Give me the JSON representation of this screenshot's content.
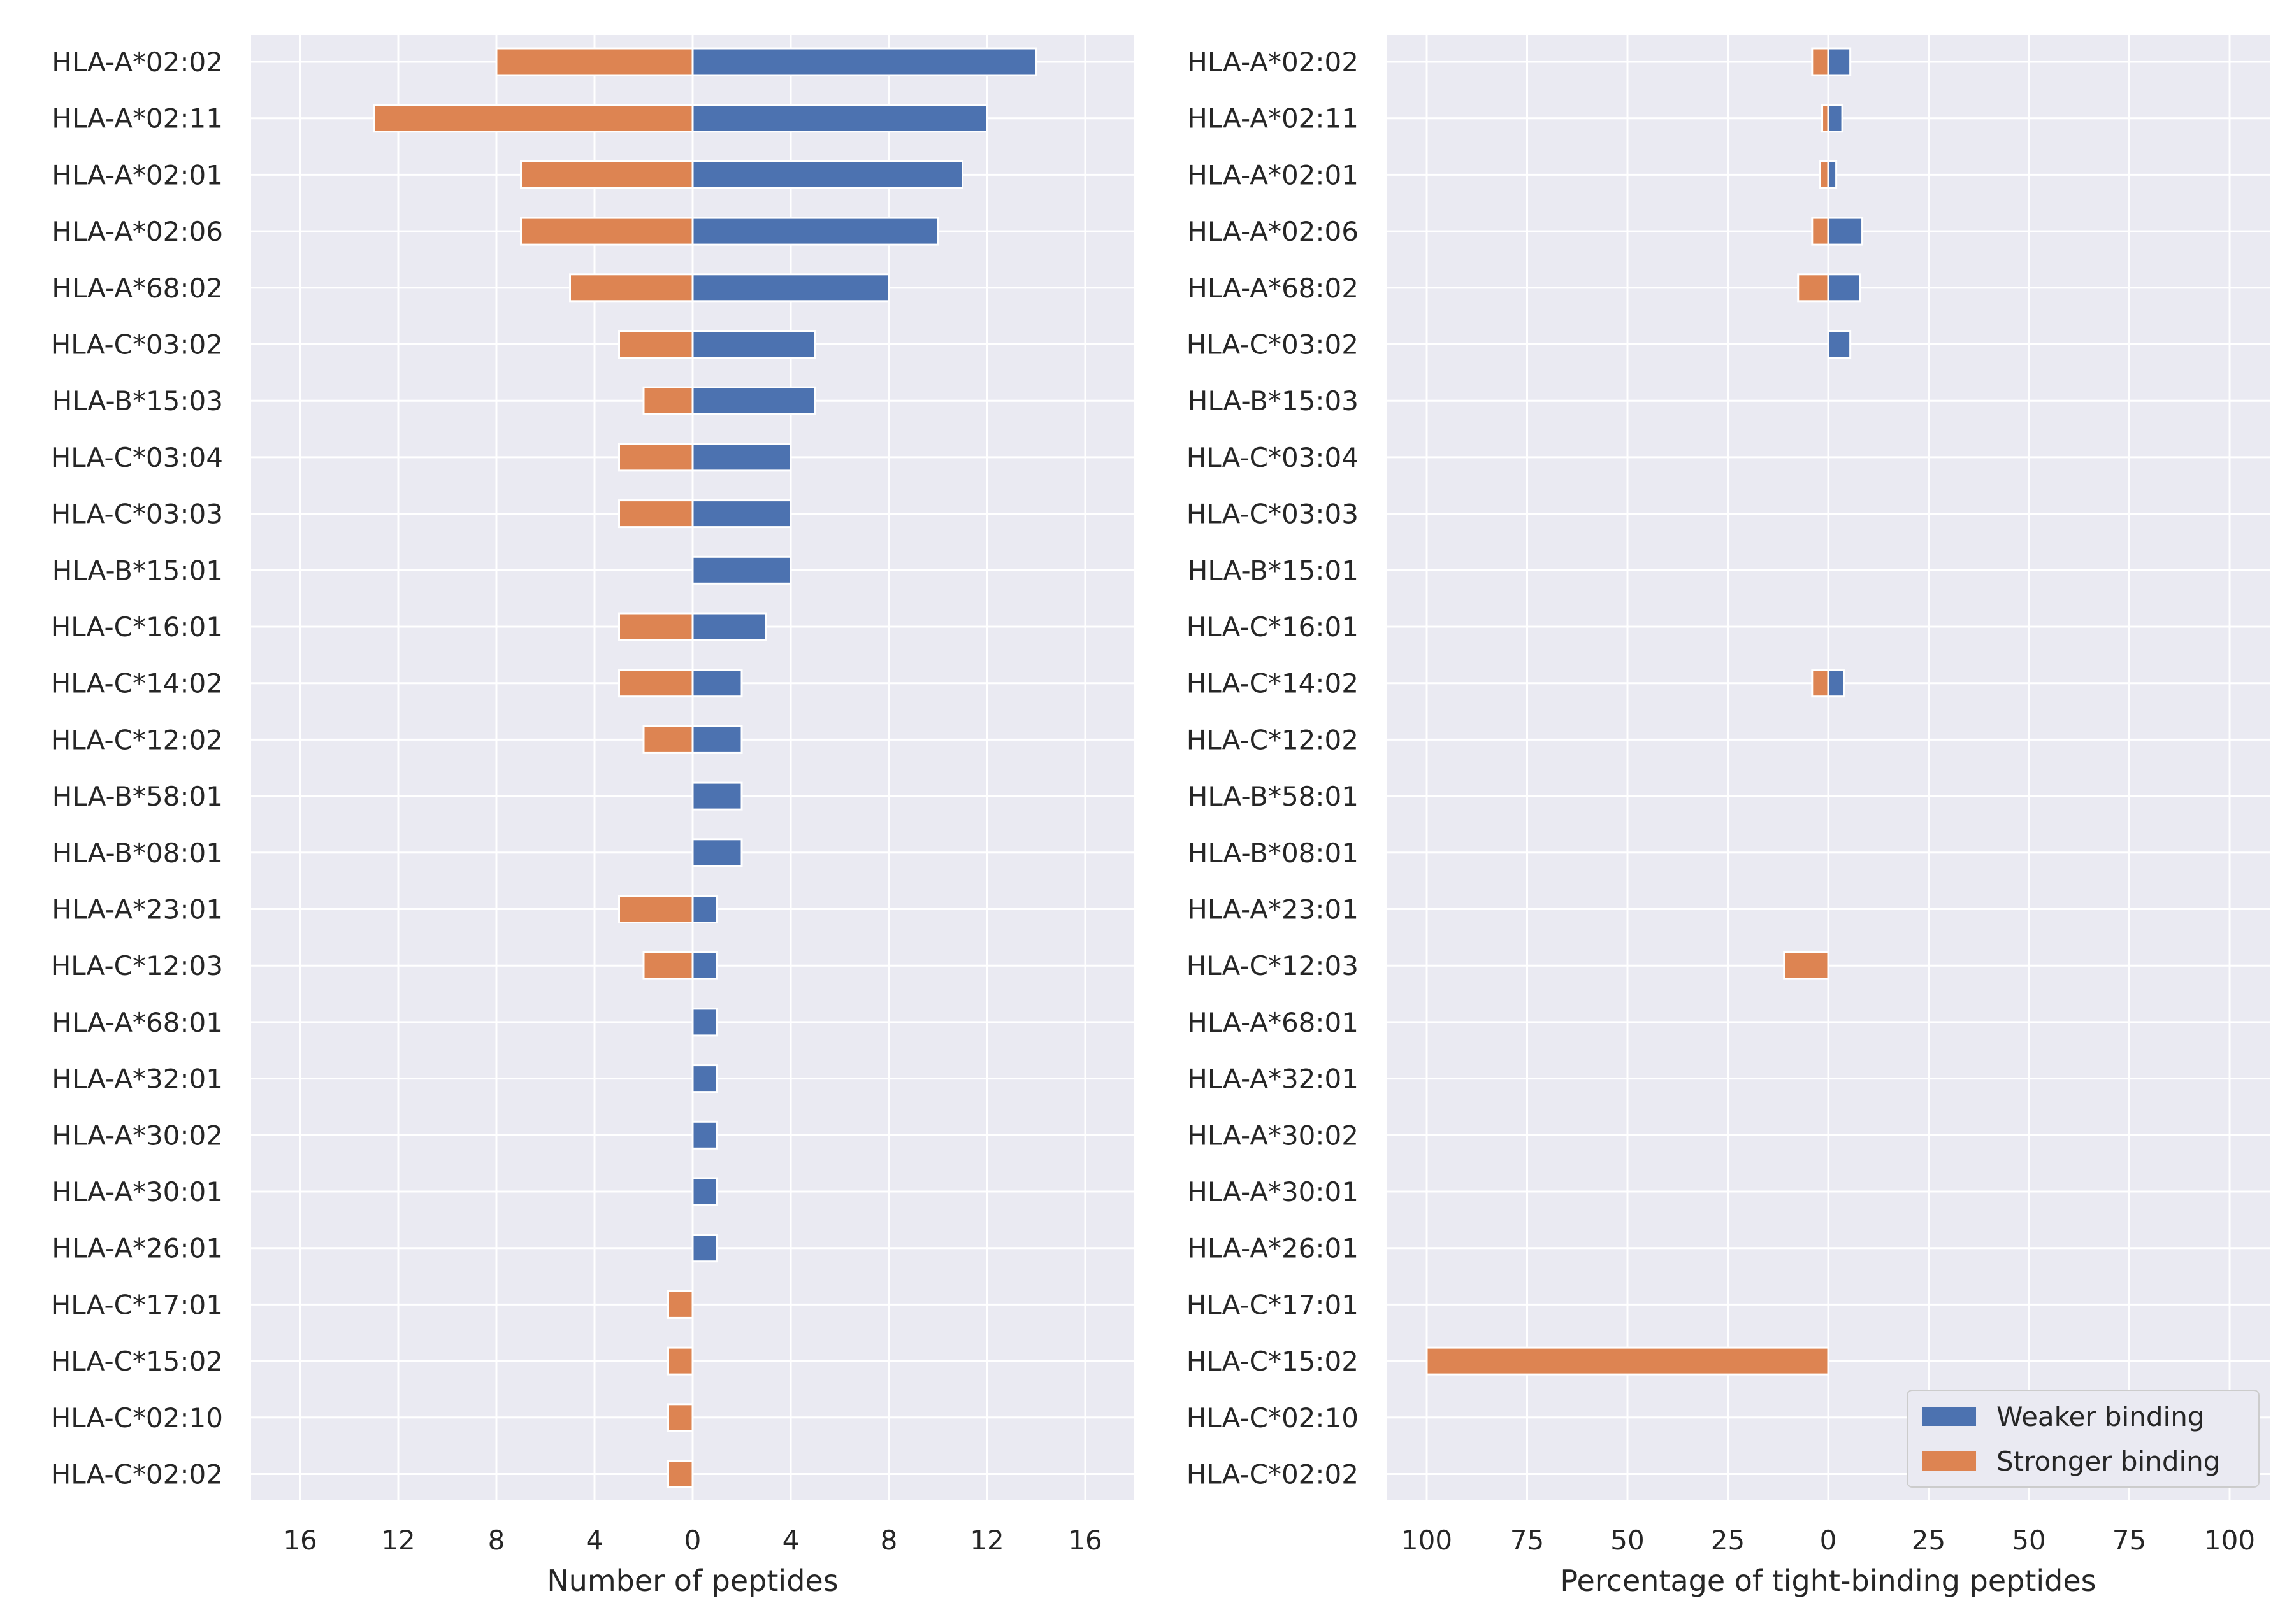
{
  "colors": {
    "weaker": "#4c72b0",
    "stronger": "#dd8452",
    "panel_bg": "#eaeaf2",
    "grid": "#ffffff"
  },
  "chart_data": [
    {
      "type": "bar",
      "orientation": "horizontal",
      "xlabel": "Number of peptides",
      "xlim": [
        -18,
        18
      ],
      "xticks": [
        -16,
        -12,
        -8,
        -4,
        0,
        4,
        8,
        12,
        16
      ],
      "xtick_labels": [
        "16",
        "12",
        "8",
        "4",
        "0",
        "4",
        "8",
        "12",
        "16"
      ],
      "grid": true,
      "categories": [
        "HLA-A*02:02",
        "HLA-A*02:11",
        "HLA-A*02:01",
        "HLA-A*02:06",
        "HLA-A*68:02",
        "HLA-C*03:02",
        "HLA-B*15:03",
        "HLA-C*03:04",
        "HLA-C*03:03",
        "HLA-B*15:01",
        "HLA-C*16:01",
        "HLA-C*14:02",
        "HLA-C*12:02",
        "HLA-B*58:01",
        "HLA-B*08:01",
        "HLA-A*23:01",
        "HLA-C*12:03",
        "HLA-A*68:01",
        "HLA-A*32:01",
        "HLA-A*30:02",
        "HLA-A*30:01",
        "HLA-A*26:01",
        "HLA-C*17:01",
        "HLA-C*15:02",
        "HLA-C*02:10",
        "HLA-C*02:02"
      ],
      "series": [
        {
          "name": "Weaker binding",
          "values": [
            14,
            12,
            11,
            10,
            8,
            5,
            5,
            4,
            4,
            4,
            3,
            2,
            2,
            2,
            2,
            1,
            1,
            1,
            1,
            1,
            1,
            1,
            0,
            0,
            0,
            0
          ]
        },
        {
          "name": "Stronger binding",
          "values": [
            8,
            13,
            7,
            7,
            5,
            3,
            2,
            3,
            3,
            0,
            3,
            3,
            2,
            0,
            0,
            3,
            2,
            0,
            0,
            0,
            0,
            0,
            1,
            1,
            1,
            1
          ]
        }
      ]
    },
    {
      "type": "bar",
      "orientation": "horizontal",
      "xlabel": "Percentage of tight-binding peptides",
      "xlim": [
        -110,
        110
      ],
      "xticks": [
        -100,
        -75,
        -50,
        -25,
        0,
        25,
        50,
        75,
        100
      ],
      "xtick_labels": [
        "100",
        "75",
        "50",
        "25",
        "0",
        "25",
        "50",
        "75",
        "100"
      ],
      "grid": true,
      "legend": {
        "position": "lower-right",
        "entries": [
          "Weaker binding",
          "Stronger binding"
        ]
      },
      "categories": [
        "HLA-A*02:02",
        "HLA-A*02:11",
        "HLA-A*02:01",
        "HLA-A*02:06",
        "HLA-A*68:02",
        "HLA-C*03:02",
        "HLA-B*15:03",
        "HLA-C*03:04",
        "HLA-C*03:03",
        "HLA-B*15:01",
        "HLA-C*16:01",
        "HLA-C*14:02",
        "HLA-C*12:02",
        "HLA-B*58:01",
        "HLA-B*08:01",
        "HLA-A*23:01",
        "HLA-C*12:03",
        "HLA-A*68:01",
        "HLA-A*32:01",
        "HLA-A*30:02",
        "HLA-A*30:01",
        "HLA-A*26:01",
        "HLA-C*17:01",
        "HLA-C*15:02",
        "HLA-C*02:10",
        "HLA-C*02:02"
      ],
      "series": [
        {
          "name": "Weaker binding",
          "values": [
            5.5,
            3.5,
            2,
            8.5,
            8,
            5.5,
            0,
            0,
            0,
            0,
            0,
            4,
            0,
            0,
            0,
            0,
            0,
            0,
            0,
            0,
            0,
            0,
            0,
            0,
            0,
            0
          ]
        },
        {
          "name": "Stronger binding",
          "values": [
            4,
            1.5,
            2,
            4,
            7.5,
            0,
            0,
            0,
            0,
            0,
            0,
            4,
            0,
            0,
            0,
            0,
            11,
            0,
            0,
            0,
            0,
            0,
            0,
            100,
            0,
            0
          ]
        }
      ]
    }
  ]
}
